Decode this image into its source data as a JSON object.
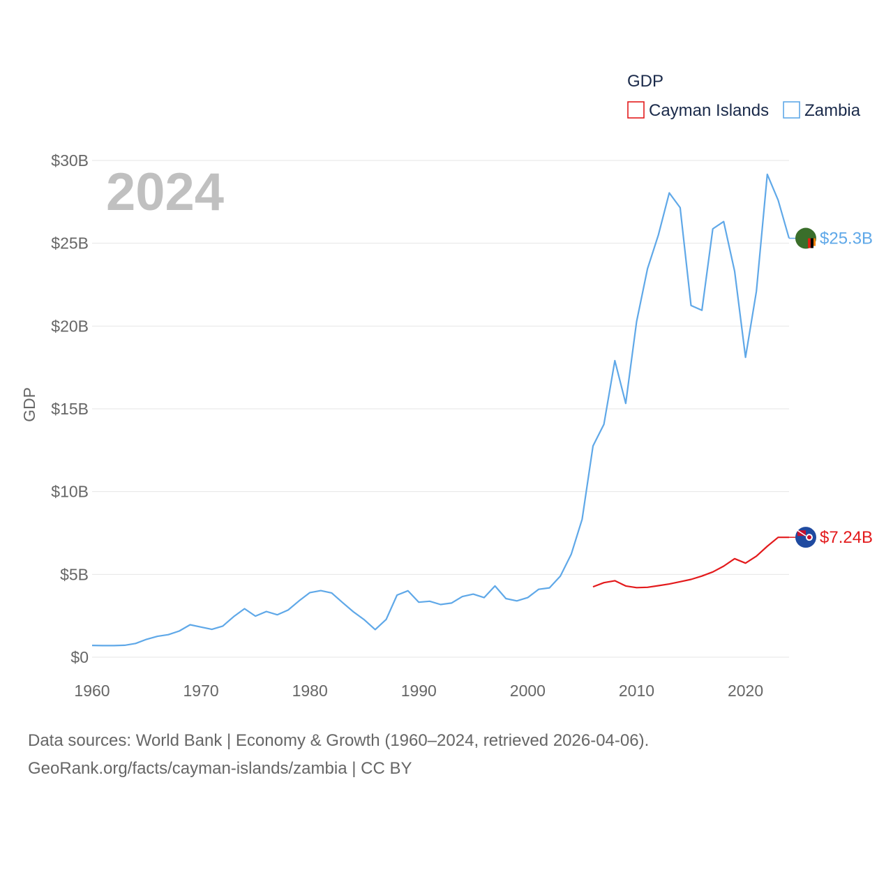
{
  "chart_data": {
    "type": "line",
    "title": "GDP",
    "xlabel": "",
    "ylabel": "GDP",
    "year_label": "2024",
    "xlim": [
      1960,
      2024
    ],
    "ylim": [
      0,
      30
    ],
    "x_ticks": [
      1960,
      1970,
      1980,
      1990,
      2000,
      2010,
      2020
    ],
    "x_tick_labels": [
      "1960",
      "1970",
      "1980",
      "1990",
      "2000",
      "2010",
      "2020"
    ],
    "y_ticks": [
      0,
      5,
      10,
      15,
      20,
      25,
      30
    ],
    "y_tick_labels": [
      "$0",
      "$5B",
      "$10B",
      "$15B",
      "$20B",
      "$25B",
      "$30B"
    ],
    "grid": true,
    "legend_position": "top-right",
    "series": [
      {
        "name": "Cayman Islands",
        "color": "#e31a1c",
        "end_label": "$7.24B",
        "flag_icon": "cayman-islands-flag-icon",
        "x": [
          2006,
          2007,
          2008,
          2009,
          2010,
          2011,
          2012,
          2013,
          2014,
          2015,
          2016,
          2017,
          2018,
          2019,
          2020,
          2021,
          2022,
          2023,
          2024
        ],
        "values": [
          4.25,
          4.5,
          4.62,
          4.3,
          4.2,
          4.22,
          4.32,
          4.42,
          4.56,
          4.7,
          4.9,
          5.15,
          5.5,
          5.95,
          5.68,
          6.1,
          6.7,
          7.24,
          7.24
        ]
      },
      {
        "name": "Zambia",
        "color": "#5fa8e8",
        "end_label": "$25.3B",
        "flag_icon": "zambia-flag-icon",
        "x": [
          1960,
          1961,
          1962,
          1963,
          1964,
          1965,
          1966,
          1967,
          1968,
          1969,
          1970,
          1971,
          1972,
          1973,
          1974,
          1975,
          1976,
          1977,
          1978,
          1979,
          1980,
          1981,
          1982,
          1983,
          1984,
          1985,
          1986,
          1987,
          1988,
          1989,
          1990,
          1991,
          1992,
          1993,
          1994,
          1995,
          1996,
          1997,
          1998,
          1999,
          2000,
          2001,
          2002,
          2003,
          2004,
          2005,
          2006,
          2007,
          2008,
          2009,
          2010,
          2011,
          2012,
          2013,
          2014,
          2015,
          2016,
          2017,
          2018,
          2019,
          2020,
          2021,
          2022,
          2023,
          2024
        ],
        "values": [
          0.71,
          0.7,
          0.7,
          0.72,
          0.83,
          1.08,
          1.26,
          1.36,
          1.58,
          1.96,
          1.82,
          1.68,
          1.88,
          2.45,
          2.93,
          2.48,
          2.76,
          2.56,
          2.85,
          3.4,
          3.9,
          4.02,
          3.88,
          3.3,
          2.74,
          2.26,
          1.67,
          2.28,
          3.75,
          4.01,
          3.32,
          3.38,
          3.18,
          3.27,
          3.66,
          3.81,
          3.6,
          4.3,
          3.54,
          3.4,
          3.6,
          4.1,
          4.19,
          4.9,
          6.22,
          8.33,
          12.76,
          14.06,
          17.91,
          15.33,
          20.27,
          23.46,
          25.5,
          28.04,
          27.15,
          21.24,
          20.95,
          25.87,
          26.31,
          23.31,
          18.11,
          22.1,
          29.16,
          27.6,
          25.3
        ]
      }
    ]
  },
  "source": {
    "line1": "Data sources: World Bank | Economy & Growth (1960–2024, retrieved 2026-04-06).",
    "line2": "GeoRank.org/facts/cayman-islands/zambia | CC BY"
  }
}
